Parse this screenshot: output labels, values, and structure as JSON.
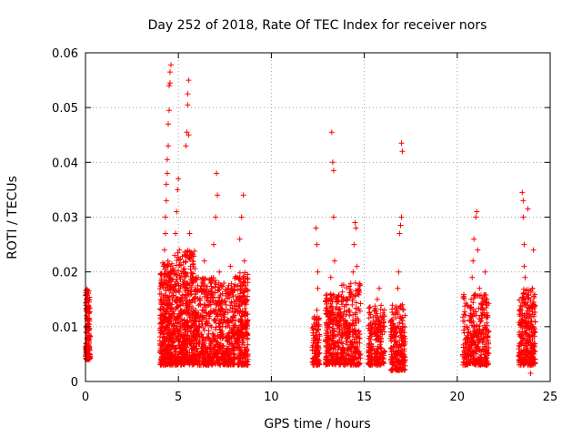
{
  "chart_data": {
    "type": "scatter",
    "title": "Day 252 of 2018, Rate Of TEC Index for receiver nors",
    "xlabel": "GPS time / hours",
    "ylabel": "ROTI / TECUs",
    "xlim": [
      0,
      25
    ],
    "ylim": [
      0,
      0.06
    ],
    "xticks": [
      "0",
      "5",
      "10",
      "15",
      "20",
      "25"
    ],
    "yticks": [
      "0",
      "0.01",
      "0.02",
      "0.03",
      "0.04",
      "0.05",
      "0.06"
    ],
    "grid": true,
    "marker": "plus",
    "color": "#ff0000",
    "points": [
      [
        0.05,
        0.004
      ],
      [
        0.05,
        0.0065
      ],
      [
        0.05,
        0.009
      ],
      [
        0.05,
        0.012
      ],
      [
        0.05,
        0.015
      ],
      [
        0.1,
        0.0045
      ],
      [
        0.1,
        0.008
      ],
      [
        0.1,
        0.011
      ],
      [
        0.1,
        0.0135
      ],
      [
        0.1,
        0.0165
      ],
      [
        0.15,
        0.005
      ],
      [
        0.15,
        0.0075
      ],
      [
        0.15,
        0.0105
      ],
      [
        0.2,
        0.006
      ],
      [
        0.2,
        0.0095
      ],
      [
        0.2,
        0.0125
      ],
      [
        4.05,
        0.006
      ],
      [
        4.1,
        0.009
      ],
      [
        4.15,
        0.012
      ],
      [
        4.2,
        0.015
      ],
      [
        4.2,
        0.018
      ],
      [
        4.25,
        0.021
      ],
      [
        4.25,
        0.024
      ],
      [
        4.3,
        0.027
      ],
      [
        4.3,
        0.03
      ],
      [
        4.35,
        0.033
      ],
      [
        4.35,
        0.036
      ],
      [
        4.4,
        0.038
      ],
      [
        4.4,
        0.0405
      ],
      [
        4.45,
        0.043
      ],
      [
        4.45,
        0.047
      ],
      [
        4.5,
        0.0495
      ],
      [
        4.5,
        0.054
      ],
      [
        4.55,
        0.0565
      ],
      [
        4.6,
        0.0578
      ],
      [
        4.55,
        0.0545
      ],
      [
        4.45,
        0.005
      ],
      [
        4.5,
        0.008
      ],
      [
        4.6,
        0.011
      ],
      [
        4.65,
        0.014
      ],
      [
        4.7,
        0.017
      ],
      [
        4.75,
        0.02
      ],
      [
        4.8,
        0.023
      ],
      [
        4.85,
        0.027
      ],
      [
        4.9,
        0.031
      ],
      [
        4.95,
        0.035
      ],
      [
        5.0,
        0.037
      ],
      [
        5.05,
        0.024
      ],
      [
        5.1,
        0.019
      ],
      [
        5.15,
        0.015
      ],
      [
        5.2,
        0.011
      ],
      [
        5.25,
        0.008
      ],
      [
        5.3,
        0.006
      ],
      [
        5.35,
        0.009
      ],
      [
        5.4,
        0.043
      ],
      [
        5.45,
        0.0455
      ],
      [
        5.5,
        0.0505
      ],
      [
        5.5,
        0.0525
      ],
      [
        5.55,
        0.055
      ],
      [
        5.55,
        0.045
      ],
      [
        5.6,
        0.027
      ],
      [
        5.65,
        0.021
      ],
      [
        5.7,
        0.016
      ],
      [
        5.75,
        0.012
      ],
      [
        5.8,
        0.009
      ],
      [
        5.85,
        0.006
      ],
      [
        5.9,
        0.004
      ],
      [
        6.0,
        0.006
      ],
      [
        6.1,
        0.01
      ],
      [
        6.2,
        0.014
      ],
      [
        6.3,
        0.018
      ],
      [
        6.4,
        0.022
      ],
      [
        6.5,
        0.012
      ],
      [
        6.6,
        0.008
      ],
      [
        6.7,
        0.005
      ],
      [
        6.8,
        0.017
      ],
      [
        6.9,
        0.025
      ],
      [
        7.0,
        0.03
      ],
      [
        7.05,
        0.038
      ],
      [
        7.1,
        0.034
      ],
      [
        7.2,
        0.02
      ],
      [
        7.3,
        0.013
      ],
      [
        7.4,
        0.008
      ],
      [
        7.5,
        0.005
      ],
      [
        7.6,
        0.011
      ],
      [
        7.7,
        0.016
      ],
      [
        7.8,
        0.021
      ],
      [
        7.9,
        0.009
      ],
      [
        8.0,
        0.006
      ],
      [
        8.1,
        0.013
      ],
      [
        8.2,
        0.019
      ],
      [
        8.3,
        0.026
      ],
      [
        8.4,
        0.03
      ],
      [
        8.5,
        0.034
      ],
      [
        8.55,
        0.022
      ],
      [
        8.6,
        0.012
      ],
      [
        8.65,
        0.006
      ],
      [
        4.2,
        0.007
      ],
      [
        4.3,
        0.01
      ],
      [
        4.6,
        0.003
      ],
      [
        4.8,
        0.006
      ],
      [
        5.0,
        0.009
      ],
      [
        5.2,
        0.005
      ],
      [
        5.4,
        0.013
      ],
      [
        5.7,
        0.007
      ],
      [
        6.2,
        0.005
      ],
      [
        6.5,
        0.003
      ],
      [
        7.2,
        0.004
      ],
      [
        7.6,
        0.006
      ],
      [
        8.0,
        0.004
      ],
      [
        8.4,
        0.008
      ],
      [
        12.3,
        0.004
      ],
      [
        12.35,
        0.007
      ],
      [
        12.4,
        0.01
      ],
      [
        12.45,
        0.013
      ],
      [
        12.5,
        0.017
      ],
      [
        12.5,
        0.02
      ],
      [
        12.45,
        0.025
      ],
      [
        12.4,
        0.028
      ],
      [
        12.55,
        0.005
      ],
      [
        13.0,
        0.004
      ],
      [
        13.05,
        0.007
      ],
      [
        13.1,
        0.01
      ],
      [
        13.15,
        0.013
      ],
      [
        13.2,
        0.016
      ],
      [
        13.2,
        0.019
      ],
      [
        13.25,
        0.0455
      ],
      [
        13.3,
        0.04
      ],
      [
        13.35,
        0.0385
      ],
      [
        13.35,
        0.03
      ],
      [
        13.4,
        0.022
      ],
      [
        13.45,
        0.015
      ],
      [
        13.5,
        0.011
      ],
      [
        13.55,
        0.007
      ],
      [
        13.6,
        0.005
      ],
      [
        13.7,
        0.009
      ],
      [
        13.8,
        0.012
      ],
      [
        13.9,
        0.004
      ],
      [
        14.0,
        0.004
      ],
      [
        14.1,
        0.008
      ],
      [
        14.2,
        0.012
      ],
      [
        14.3,
        0.016
      ],
      [
        14.4,
        0.02
      ],
      [
        14.45,
        0.025
      ],
      [
        14.5,
        0.029
      ],
      [
        14.55,
        0.028
      ],
      [
        14.6,
        0.021
      ],
      [
        14.65,
        0.016
      ],
      [
        14.7,
        0.011
      ],
      [
        14.75,
        0.007
      ],
      [
        14.8,
        0.005
      ],
      [
        15.3,
        0.003
      ],
      [
        15.4,
        0.006
      ],
      [
        15.5,
        0.009
      ],
      [
        15.6,
        0.012
      ],
      [
        15.7,
        0.015
      ],
      [
        15.8,
        0.017
      ],
      [
        15.9,
        0.01
      ],
      [
        16.0,
        0.005
      ],
      [
        16.5,
        0.002
      ],
      [
        16.6,
        0.005
      ],
      [
        16.7,
        0.009
      ],
      [
        16.75,
        0.013
      ],
      [
        16.8,
        0.017
      ],
      [
        16.85,
        0.02
      ],
      [
        16.9,
        0.027
      ],
      [
        16.95,
        0.0285
      ],
      [
        17.0,
        0.0435
      ],
      [
        17.05,
        0.042
      ],
      [
        17.0,
        0.03
      ],
      [
        17.05,
        0.014
      ],
      [
        17.1,
        0.008
      ],
      [
        17.15,
        0.004
      ],
      [
        20.4,
        0.003
      ],
      [
        20.5,
        0.006
      ],
      [
        20.6,
        0.009
      ],
      [
        20.7,
        0.012
      ],
      [
        20.75,
        0.015
      ],
      [
        20.8,
        0.019
      ],
      [
        20.85,
        0.022
      ],
      [
        20.9,
        0.026
      ],
      [
        21.0,
        0.03
      ],
      [
        21.05,
        0.031
      ],
      [
        21.1,
        0.024
      ],
      [
        21.2,
        0.017
      ],
      [
        21.3,
        0.012
      ],
      [
        21.4,
        0.008
      ],
      [
        21.5,
        0.005
      ],
      [
        21.6,
        0.003
      ],
      [
        21.6,
        0.015
      ],
      [
        21.5,
        0.02
      ],
      [
        23.4,
        0.005
      ],
      [
        23.45,
        0.008
      ],
      [
        23.5,
        0.012
      ],
      [
        23.55,
        0.016
      ],
      [
        23.6,
        0.021
      ],
      [
        23.6,
        0.025
      ],
      [
        23.55,
        0.03
      ],
      [
        23.5,
        0.0345
      ],
      [
        23.55,
        0.033
      ],
      [
        23.65,
        0.019
      ],
      [
        23.7,
        0.014
      ],
      [
        23.75,
        0.01
      ],
      [
        23.8,
        0.0315
      ],
      [
        23.85,
        0.007
      ],
      [
        23.9,
        0.004
      ],
      [
        23.95,
        0.0015
      ],
      [
        24.0,
        0.011
      ],
      [
        24.05,
        0.017
      ],
      [
        24.1,
        0.024
      ],
      [
        24.2,
        0.009
      ]
    ],
    "clusters": [
      {
        "x": [
          0.0,
          0.25
        ],
        "y": [
          0.004,
          0.017
        ],
        "n": 140
      },
      {
        "x": [
          4.0,
          4.9
        ],
        "y": [
          0.003,
          0.022
        ],
        "n": 420
      },
      {
        "x": [
          4.9,
          5.9
        ],
        "y": [
          0.003,
          0.024
        ],
        "n": 420
      },
      {
        "x": [
          5.9,
          7.1
        ],
        "y": [
          0.003,
          0.019
        ],
        "n": 360
      },
      {
        "x": [
          7.1,
          8.0
        ],
        "y": [
          0.003,
          0.018
        ],
        "n": 300
      },
      {
        "x": [
          8.0,
          8.75
        ],
        "y": [
          0.003,
          0.02
        ],
        "n": 260
      },
      {
        "x": [
          12.2,
          12.6
        ],
        "y": [
          0.003,
          0.012
        ],
        "n": 110
      },
      {
        "x": [
          12.9,
          13.7
        ],
        "y": [
          0.003,
          0.016
        ],
        "n": 240
      },
      {
        "x": [
          13.7,
          14.8
        ],
        "y": [
          0.003,
          0.018
        ],
        "n": 260
      },
      {
        "x": [
          15.2,
          16.1
        ],
        "y": [
          0.003,
          0.014
        ],
        "n": 220
      },
      {
        "x": [
          16.4,
          17.2
        ],
        "y": [
          0.002,
          0.014
        ],
        "n": 220
      },
      {
        "x": [
          20.3,
          21.7
        ],
        "y": [
          0.003,
          0.016
        ],
        "n": 340
      },
      {
        "x": [
          23.3,
          24.2
        ],
        "y": [
          0.003,
          0.017
        ],
        "n": 300
      }
    ]
  }
}
